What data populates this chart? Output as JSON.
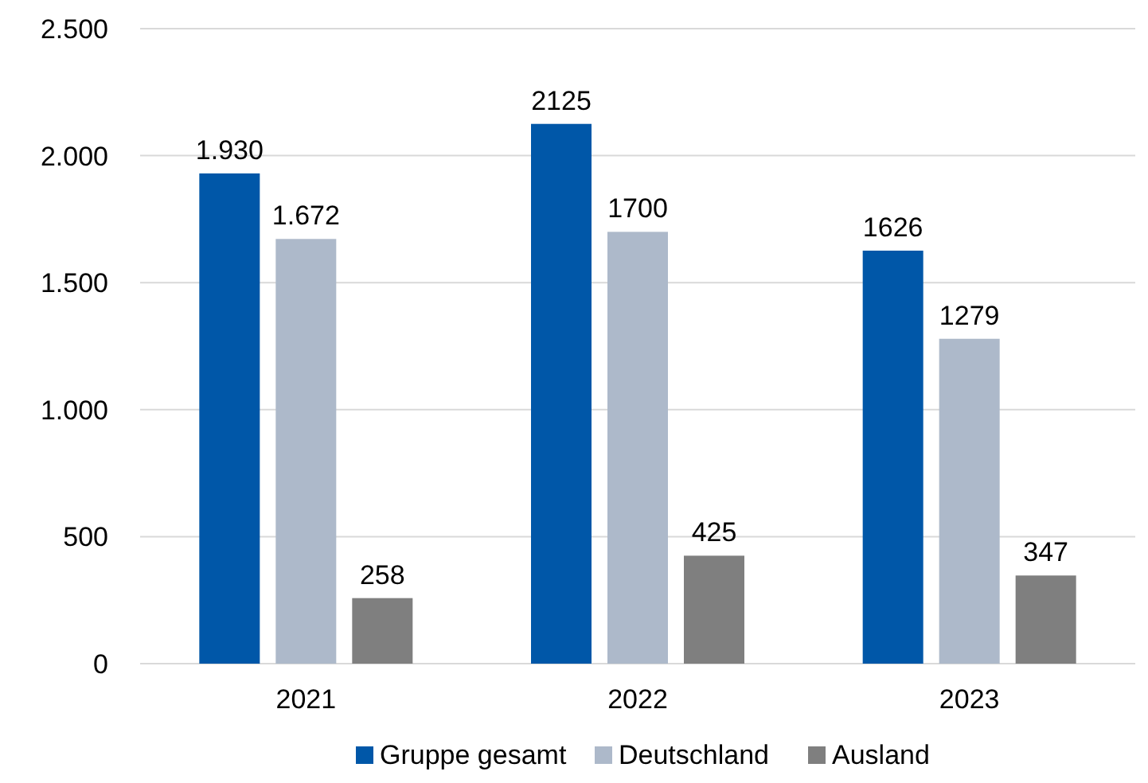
{
  "chart_data": {
    "type": "bar",
    "categories": [
      "2021",
      "2022",
      "2023"
    ],
    "series": [
      {
        "name": "Gruppe gesamt",
        "color": "#0057a8",
        "values": [
          1930,
          2125,
          1626
        ],
        "value_labels": [
          "1.930",
          "2125",
          "1626"
        ]
      },
      {
        "name": "Deutschland",
        "color": "#adb9ca",
        "values": [
          1672,
          1700,
          1279
        ],
        "value_labels": [
          "1.672",
          "1700",
          "1279"
        ]
      },
      {
        "name": "Ausland",
        "color": "#7f7f7f",
        "values": [
          258,
          425,
          347
        ],
        "value_labels": [
          "258",
          "425",
          "347"
        ]
      }
    ],
    "ylim": [
      0,
      2500
    ],
    "yticks": [
      0,
      {
        "value": 500,
        "label": "500"
      },
      {
        "value": 1000,
        "label": "1.000"
      },
      {
        "value": 1500,
        "label": "1.500"
      },
      {
        "value": 2000,
        "label": "2.000"
      },
      {
        "value": 2500,
        "label": "2.500"
      }
    ],
    "grid": "y",
    "legend": "bottom"
  }
}
